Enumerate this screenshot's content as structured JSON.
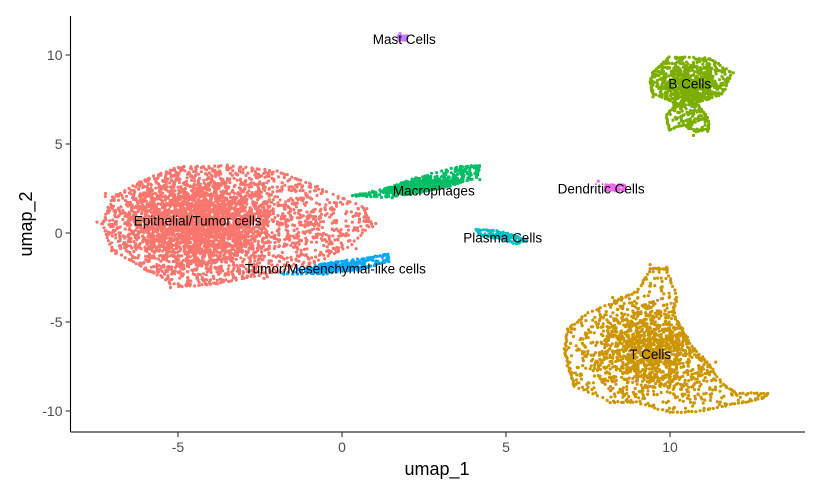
{
  "chart_data": {
    "type": "scatter",
    "xlabel": "umap_1",
    "ylabel": "umap_2",
    "xlim": [
      -8.3,
      14.0
    ],
    "ylim": [
      -11.1,
      12.1
    ],
    "xticks": [
      -5,
      0,
      5,
      10
    ],
    "yticks": [
      -10,
      -5,
      0,
      5,
      10
    ],
    "xtick_labels": [
      "-5",
      "0",
      "5",
      "10"
    ],
    "ytick_labels": [
      "-10",
      "-5",
      "0",
      "5",
      "10"
    ],
    "grid": false,
    "legend": "none",
    "clusters": [
      {
        "label": "Epithelial/Tumor cells",
        "color": "#F8766D",
        "label_pos": [
          -4.4,
          0.7
        ],
        "center": [
          -4.3,
          0.6
        ],
        "spread": [
          2.6,
          2.9
        ],
        "hull": [
          [
            -7.3,
            0.5
          ],
          [
            -7.0,
            2.0
          ],
          [
            -6.0,
            3.0
          ],
          [
            -5.0,
            3.7
          ],
          [
            -3.5,
            3.8
          ],
          [
            -2.0,
            3.5
          ],
          [
            -0.8,
            2.6
          ],
          [
            0.6,
            1.5
          ],
          [
            0.9,
            0.5
          ],
          [
            0.2,
            -0.8
          ],
          [
            -1.0,
            -1.8
          ],
          [
            -2.5,
            -2.4
          ],
          [
            -4.0,
            -2.9
          ],
          [
            -5.0,
            -3.0
          ],
          [
            -6.0,
            -2.0
          ],
          [
            -7.0,
            -1.0
          ]
        ],
        "n": 3800
      },
      {
        "label": "Tumor/Mesenchymal-like cells",
        "color": "#00A9FF",
        "label_pos": [
          -0.2,
          -2.0
        ],
        "center": [
          -0.1,
          -1.85
        ],
        "spread": [
          1.4,
          0.4
        ],
        "hull": [
          [
            -1.8,
            -2.3
          ],
          [
            -0.5,
            -1.7
          ],
          [
            0.8,
            -1.4
          ],
          [
            1.4,
            -1.2
          ],
          [
            1.4,
            -1.6
          ],
          [
            0.6,
            -2.0
          ],
          [
            -0.6,
            -2.3
          ]
        ],
        "n": 260
      },
      {
        "label": "Macrophages",
        "color": "#00BE67",
        "label_pos": [
          2.8,
          2.4
        ],
        "center": [
          2.6,
          2.6
        ],
        "spread": [
          1.7,
          0.5
        ],
        "hull": [
          [
            0.3,
            2.1
          ],
          [
            1.5,
            2.0
          ],
          [
            3.0,
            2.5
          ],
          [
            4.1,
            3.1
          ],
          [
            4.2,
            3.8
          ],
          [
            3.5,
            3.7
          ],
          [
            2.3,
            3.1
          ],
          [
            1.0,
            2.3
          ]
        ],
        "n": 750
      },
      {
        "label": "Mast Cells",
        "color": "#C77CFF",
        "label_pos": [
          1.9,
          10.9
        ],
        "center": [
          1.85,
          10.95
        ],
        "spread": [
          0.07,
          0.09
        ],
        "hull": [
          [
            1.75,
            10.85
          ],
          [
            1.95,
            10.85
          ],
          [
            1.95,
            11.05
          ],
          [
            1.75,
            11.05
          ]
        ],
        "n": 6
      },
      {
        "label": "B Cells",
        "color": "#7CAE00",
        "label_pos": [
          10.6,
          8.4
        ],
        "center": [
          10.6,
          8.2
        ],
        "spread": [
          1.1,
          1.6
        ],
        "hull": [
          [
            9.5,
            9.1
          ],
          [
            10.0,
            9.9
          ],
          [
            11.2,
            9.8
          ],
          [
            11.9,
            9.0
          ],
          [
            11.6,
            7.8
          ],
          [
            10.8,
            7.3
          ],
          [
            11.1,
            6.6
          ],
          [
            11.2,
            5.9
          ],
          [
            10.8,
            5.7
          ],
          [
            10.4,
            6.1
          ],
          [
            10.0,
            5.8
          ],
          [
            9.9,
            6.6
          ],
          [
            10.2,
            7.3
          ],
          [
            9.5,
            7.8
          ],
          [
            9.4,
            8.4
          ]
        ],
        "n": 850
      },
      {
        "label": "Dendritic Cells",
        "color": "#ED68ED",
        "label_pos": [
          7.9,
          2.5
        ],
        "center": [
          8.3,
          2.55
        ],
        "spread": [
          0.2,
          0.1
        ],
        "hull": [
          [
            8.05,
            2.4
          ],
          [
            8.6,
            2.4
          ],
          [
            8.6,
            2.7
          ],
          [
            8.05,
            2.7
          ]
        ],
        "n": 18
      },
      {
        "label": "Plasma Cells",
        "color": "#00BFC4",
        "label_pos": [
          4.9,
          -0.25
        ],
        "center": [
          4.85,
          -0.2
        ],
        "spread": [
          0.65,
          0.22
        ],
        "hull": [
          [
            4.1,
            0.2
          ],
          [
            4.7,
            0.1
          ],
          [
            5.2,
            -0.1
          ],
          [
            5.6,
            -0.4
          ],
          [
            5.3,
            -0.6
          ],
          [
            4.8,
            -0.3
          ],
          [
            4.2,
            -0.1
          ]
        ],
        "n": 110
      },
      {
        "label": "T Cells",
        "color": "#CD9600",
        "label_pos": [
          9.4,
          -6.8
        ],
        "center": [
          9.4,
          -6.5
        ],
        "spread": [
          2.3,
          2.9
        ],
        "hull": [
          [
            6.9,
            -5.4
          ],
          [
            7.4,
            -4.6
          ],
          [
            8.4,
            -3.8
          ],
          [
            9.0,
            -3.3
          ],
          [
            9.4,
            -2.0
          ],
          [
            9.9,
            -2.0
          ],
          [
            10.2,
            -3.6
          ],
          [
            10.1,
            -4.6
          ],
          [
            10.4,
            -5.5
          ],
          [
            10.6,
            -6.2
          ],
          [
            11.2,
            -7.4
          ],
          [
            11.6,
            -8.5
          ],
          [
            12.0,
            -9.0
          ],
          [
            13.0,
            -9.0
          ],
          [
            12.8,
            -9.3
          ],
          [
            12.0,
            -9.6
          ],
          [
            10.9,
            -10.0
          ],
          [
            10.0,
            -10.1
          ],
          [
            9.0,
            -9.5
          ],
          [
            8.2,
            -9.5
          ],
          [
            7.1,
            -8.6
          ],
          [
            6.9,
            -7.6
          ],
          [
            6.8,
            -6.5
          ]
        ],
        "n": 1500
      }
    ]
  }
}
